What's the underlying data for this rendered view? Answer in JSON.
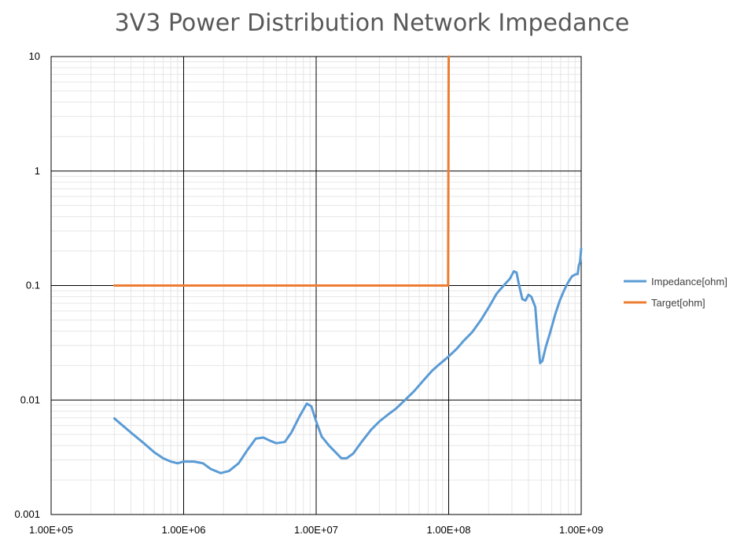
{
  "chart_data": {
    "type": "line",
    "title": "3V3 Power Distribution Network Impedance",
    "xlabel": "",
    "ylabel": "",
    "x_scale": "log",
    "y_scale": "log",
    "xlim": [
      100000,
      1000000000
    ],
    "ylim": [
      0.001,
      10
    ],
    "x_tick_values": [
      100000,
      1000000,
      10000000,
      100000000,
      1000000000
    ],
    "x_tick_labels": [
      "1.00E+05",
      "1.00E+06",
      "1.00E+07",
      "1.00E+08",
      "1.00E+09"
    ],
    "y_tick_values": [
      0.001,
      0.01,
      0.1,
      1,
      10
    ],
    "y_tick_labels": [
      "0.001",
      "0.01",
      "0.1",
      "1",
      "10"
    ],
    "grid": true,
    "legend_position": "right",
    "series": [
      {
        "name": "Impedance[ohm]",
        "color": "#5B9BD5",
        "points": [
          [
            300000,
            0.0069
          ],
          [
            400000,
            0.0052
          ],
          [
            500000,
            0.0042
          ],
          [
            600000,
            0.0035
          ],
          [
            700000,
            0.0031
          ],
          [
            800000,
            0.0029
          ],
          [
            900000,
            0.0028
          ],
          [
            1000000,
            0.0029
          ],
          [
            1200000,
            0.0029
          ],
          [
            1400000,
            0.0028
          ],
          [
            1600000,
            0.0025
          ],
          [
            1900000,
            0.0023
          ],
          [
            2200000,
            0.0024
          ],
          [
            2600000,
            0.0028
          ],
          [
            3000000,
            0.0036
          ],
          [
            3500000,
            0.0046
          ],
          [
            4000000,
            0.0047
          ],
          [
            4500000,
            0.0044
          ],
          [
            5000000,
            0.0042
          ],
          [
            5800000,
            0.0043
          ],
          [
            6500000,
            0.0052
          ],
          [
            7500000,
            0.0072
          ],
          [
            8500000,
            0.0093
          ],
          [
            9200000,
            0.0088
          ],
          [
            10000000,
            0.0065
          ],
          [
            11000000,
            0.0048
          ],
          [
            12500000,
            0.004
          ],
          [
            14000000,
            0.0035
          ],
          [
            15500000,
            0.0031
          ],
          [
            17000000,
            0.0031
          ],
          [
            19000000,
            0.0034
          ],
          [
            22000000,
            0.0043
          ],
          [
            26000000,
            0.0055
          ],
          [
            30000000,
            0.0065
          ],
          [
            35000000,
            0.0075
          ],
          [
            40000000,
            0.0084
          ],
          [
            46000000,
            0.0098
          ],
          [
            55000000,
            0.012
          ],
          [
            65000000,
            0.015
          ],
          [
            75000000,
            0.018
          ],
          [
            85000000,
            0.0205
          ],
          [
            100000000,
            0.024
          ],
          [
            115000000,
            0.028
          ],
          [
            130000000,
            0.033
          ],
          [
            150000000,
            0.039
          ],
          [
            175000000,
            0.05
          ],
          [
            200000000,
            0.064
          ],
          [
            230000000,
            0.085
          ],
          [
            260000000,
            0.1
          ],
          [
            290000000,
            0.115
          ],
          [
            310000000,
            0.133
          ],
          [
            325000000,
            0.13
          ],
          [
            340000000,
            0.1
          ],
          [
            360000000,
            0.076
          ],
          [
            380000000,
            0.074
          ],
          [
            400000000,
            0.083
          ],
          [
            420000000,
            0.08
          ],
          [
            450000000,
            0.065
          ],
          [
            470000000,
            0.035
          ],
          [
            490000000,
            0.021
          ],
          [
            510000000,
            0.022
          ],
          [
            540000000,
            0.029
          ],
          [
            580000000,
            0.038
          ],
          [
            640000000,
            0.057
          ],
          [
            690000000,
            0.074
          ],
          [
            740000000,
            0.09
          ],
          [
            790000000,
            0.105
          ],
          [
            850000000,
            0.12
          ],
          [
            900000000,
            0.125
          ],
          [
            940000000,
            0.126
          ],
          [
            960000000,
            0.15
          ],
          [
            980000000,
            0.16
          ],
          [
            1000000000,
            0.21
          ]
        ]
      },
      {
        "name": "Target[ohm]",
        "color": "#ED7D31",
        "points": [
          [
            300000,
            0.1
          ],
          [
            99000000,
            0.1
          ],
          [
            100000000,
            10
          ]
        ]
      }
    ]
  }
}
